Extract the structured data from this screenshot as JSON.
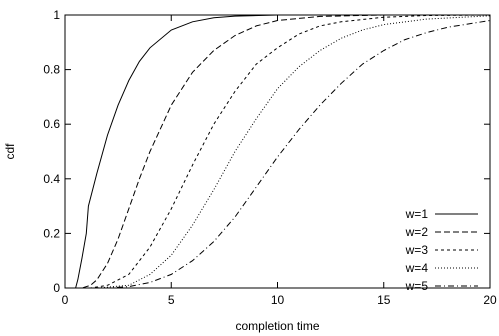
{
  "chart_data": {
    "type": "line",
    "title": "",
    "xlabel": "completion time",
    "ylabel": "cdf",
    "xlim": [
      0,
      20
    ],
    "ylim": [
      0,
      1
    ],
    "x_ticks": [
      "0",
      "5",
      "10",
      "15",
      "20"
    ],
    "y_ticks": [
      "0",
      "0.2",
      "0.4",
      "0.6",
      "0.8",
      "1"
    ],
    "grid": false,
    "legend_position": "bottom-right",
    "series": [
      {
        "name": "w=1",
        "dash": "solid",
        "points": [
          [
            0,
            0
          ],
          [
            0.5,
            0
          ],
          [
            0.6,
            0.03
          ],
          [
            0.8,
            0.11
          ],
          [
            1.0,
            0.2
          ],
          [
            1.1,
            0.3
          ],
          [
            1.5,
            0.42
          ],
          [
            2,
            0.56
          ],
          [
            2.5,
            0.67
          ],
          [
            3,
            0.76
          ],
          [
            3.5,
            0.83
          ],
          [
            4,
            0.88
          ],
          [
            5,
            0.945
          ],
          [
            6,
            0.975
          ],
          [
            7,
            0.99
          ],
          [
            8,
            0.996
          ],
          [
            10,
            1.0
          ],
          [
            20,
            1.0
          ]
        ]
      },
      {
        "name": "w=2",
        "dash": "dashed",
        "points": [
          [
            0,
            0
          ],
          [
            0.8,
            0
          ],
          [
            1.2,
            0.01
          ],
          [
            1.5,
            0.03
          ],
          [
            2,
            0.09
          ],
          [
            2.5,
            0.18
          ],
          [
            3,
            0.29
          ],
          [
            3.5,
            0.4
          ],
          [
            4,
            0.5
          ],
          [
            5,
            0.67
          ],
          [
            6,
            0.79
          ],
          [
            7,
            0.87
          ],
          [
            8,
            0.925
          ],
          [
            9,
            0.96
          ],
          [
            10,
            0.98
          ],
          [
            12,
            0.995
          ],
          [
            15,
            1.0
          ],
          [
            20,
            1.0
          ]
        ]
      },
      {
        "name": "w=3",
        "dash": "short-dashed",
        "points": [
          [
            0,
            0
          ],
          [
            1.2,
            0
          ],
          [
            2,
            0.01
          ],
          [
            3,
            0.05
          ],
          [
            4,
            0.15
          ],
          [
            5,
            0.29
          ],
          [
            6,
            0.45
          ],
          [
            7,
            0.6
          ],
          [
            8,
            0.72
          ],
          [
            9,
            0.82
          ],
          [
            10,
            0.88
          ],
          [
            11,
            0.93
          ],
          [
            12,
            0.96
          ],
          [
            13,
            0.975
          ],
          [
            15,
            0.992
          ],
          [
            17,
            0.998
          ],
          [
            20,
            1.0
          ]
        ]
      },
      {
        "name": "w=4",
        "dash": "dotted",
        "points": [
          [
            0,
            0
          ],
          [
            1.5,
            0
          ],
          [
            3,
            0.01
          ],
          [
            4,
            0.05
          ],
          [
            5,
            0.12
          ],
          [
            6,
            0.23
          ],
          [
            7,
            0.36
          ],
          [
            8,
            0.5
          ],
          [
            9,
            0.62
          ],
          [
            10,
            0.73
          ],
          [
            11,
            0.81
          ],
          [
            12,
            0.87
          ],
          [
            13,
            0.915
          ],
          [
            14,
            0.945
          ],
          [
            15,
            0.965
          ],
          [
            17,
            0.985
          ],
          [
            20,
            0.997
          ]
        ]
      },
      {
        "name": "w=5",
        "dash": "dash-dot",
        "points": [
          [
            0,
            0
          ],
          [
            2,
            0
          ],
          [
            3,
            0.005
          ],
          [
            4,
            0.02
          ],
          [
            5,
            0.05
          ],
          [
            6,
            0.1
          ],
          [
            7,
            0.17
          ],
          [
            8,
            0.26
          ],
          [
            9,
            0.37
          ],
          [
            10,
            0.48
          ],
          [
            11,
            0.58
          ],
          [
            12,
            0.67
          ],
          [
            13,
            0.75
          ],
          [
            14,
            0.82
          ],
          [
            15,
            0.87
          ],
          [
            16,
            0.91
          ],
          [
            17,
            0.935
          ],
          [
            18,
            0.955
          ],
          [
            20,
            0.98
          ]
        ]
      }
    ]
  }
}
